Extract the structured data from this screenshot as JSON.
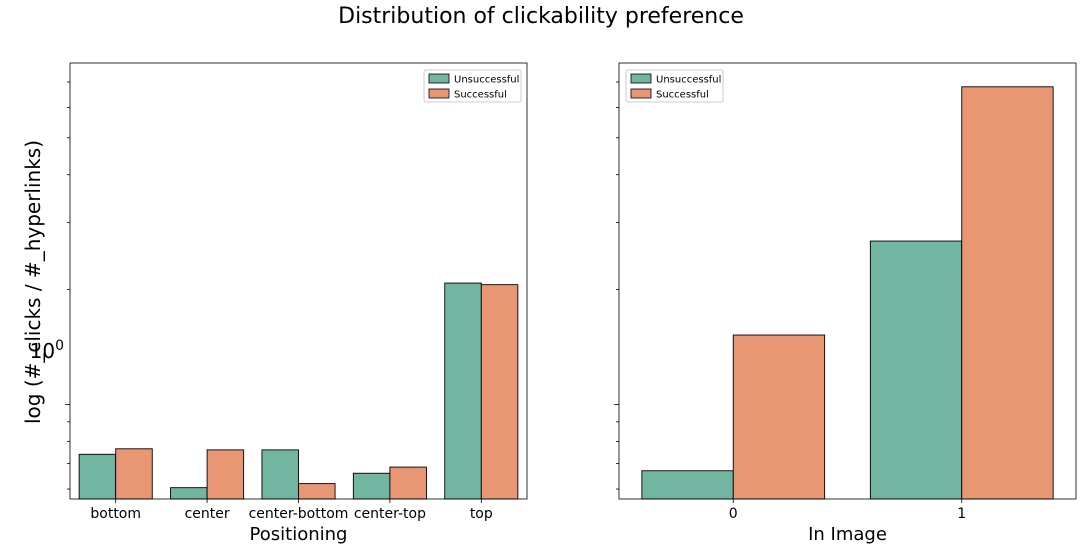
{
  "figure_title": "Distribution of clickability preference",
  "chart_data": [
    {
      "type": "bar",
      "yscale": "log",
      "ylim": [
        0.565,
        7.85
      ],
      "ylabel": "log (#_clicks / #_hyperlinks)",
      "xlabel": "Positioning",
      "categories": [
        "bottom",
        "center",
        "center-bottom",
        "center-top",
        "top"
      ],
      "series": [
        {
          "name": "Unsuccessful",
          "values": [
            0.74,
            0.605,
            0.76,
            0.66,
            2.08
          ]
        },
        {
          "name": "Successful",
          "values": [
            0.765,
            0.76,
            0.62,
            0.685,
            2.06
          ]
        }
      ],
      "ytick_labels": [
        {
          "base": "10",
          "exp": "0",
          "value": 1
        }
      ],
      "legend": {
        "position": "top-right",
        "entries": [
          "Unsuccessful",
          "Successful"
        ]
      },
      "colors": {
        "Unsuccessful": "#72b6a1",
        "Successful": "#e99675"
      },
      "grid": false
    },
    {
      "type": "bar",
      "yscale": "log",
      "ylim": [
        0.565,
        7.85
      ],
      "ylabel": "",
      "xlabel": "In Image",
      "categories": [
        "0",
        "1"
      ],
      "series": [
        {
          "name": "Unsuccessful",
          "values": [
            0.67,
            2.68
          ]
        },
        {
          "name": "Successful",
          "values": [
            1.52,
            6.8
          ]
        }
      ],
      "ytick_labels": [],
      "legend": {
        "position": "top-left",
        "entries": [
          "Unsuccessful",
          "Successful"
        ]
      },
      "colors": {
        "Unsuccessful": "#72b6a1",
        "Successful": "#e99675"
      },
      "grid": false
    }
  ]
}
